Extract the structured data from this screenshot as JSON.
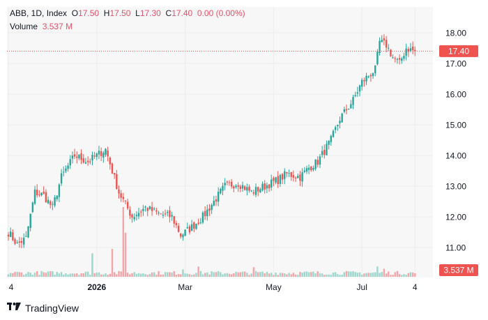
{
  "legend": {
    "symbol": "ABB, 1D, Index",
    "o_label": "O",
    "o_value": "17.50",
    "h_label": "H",
    "h_value": "17.50",
    "l_label": "L",
    "l_value": "17.30",
    "c_label": "C",
    "c_value": "17.40",
    "change": "0.00 (0.00%)",
    "volume_label": "Volume",
    "volume_value": "3.537 M"
  },
  "price_tag": "17.40",
  "volume_tag": "3.537 M",
  "footer": {
    "brand": "TradingView"
  },
  "colors": {
    "up": "#26a69a",
    "down": "#ef5350",
    "background": "#f7f7f7",
    "tag": "#ef5350"
  },
  "chart_data": {
    "type": "candlestick",
    "y_ticks": [
      11.0,
      12.0,
      13.0,
      14.0,
      15.0,
      16.0,
      17.0,
      18.0
    ],
    "y_tick_labels": [
      "11.00",
      "12.00",
      "13.00",
      "14.00",
      "15.00",
      "16.00",
      "17.00",
      "18.00"
    ],
    "ylim": [
      10.2,
      18.3
    ],
    "last_price": 17.4,
    "x_ticks": [
      {
        "label": "4",
        "index": 0
      },
      {
        "label": "2026",
        "index": 40
      },
      {
        "label": "Mar",
        "index": 80
      },
      {
        "label": "May",
        "index": 120
      },
      {
        "label": "Jul",
        "index": 160
      },
      {
        "label": "4",
        "index": 184
      }
    ],
    "x_tick_bold": [
      false,
      true,
      false,
      false,
      false,
      false
    ],
    "close_anchors": [
      [
        0,
        11.5
      ],
      [
        4,
        11.1
      ],
      [
        8,
        11.3
      ],
      [
        12,
        12.8
      ],
      [
        16,
        12.7
      ],
      [
        20,
        12.3
      ],
      [
        24,
        13.3
      ],
      [
        30,
        14.0
      ],
      [
        36,
        13.8
      ],
      [
        44,
        14.2
      ],
      [
        50,
        12.8
      ],
      [
        56,
        12.0
      ],
      [
        62,
        12.3
      ],
      [
        68,
        12.1
      ],
      [
        74,
        12.0
      ],
      [
        78,
        11.4
      ],
      [
        82,
        11.6
      ],
      [
        88,
        12.0
      ],
      [
        94,
        12.6
      ],
      [
        98,
        13.0
      ],
      [
        104,
        13.1
      ],
      [
        110,
        12.8
      ],
      [
        116,
        13.0
      ],
      [
        122,
        13.2
      ],
      [
        126,
        13.4
      ],
      [
        132,
        13.3
      ],
      [
        136,
        13.6
      ],
      [
        140,
        13.8
      ],
      [
        146,
        14.5
      ],
      [
        150,
        15.2
      ],
      [
        156,
        15.8
      ],
      [
        160,
        16.4
      ],
      [
        166,
        16.8
      ],
      [
        168,
        17.7
      ],
      [
        171,
        17.6
      ],
      [
        174,
        17.2
      ],
      [
        177,
        17.0
      ],
      [
        180,
        17.5
      ],
      [
        184,
        17.4
      ]
    ],
    "volume_note": "Volume histogram at bottom, scaled to max value in series",
    "volume_spikes": [
      {
        "index": 38,
        "value": 3.2
      },
      {
        "index": 47,
        "value": 3.8
      },
      {
        "index": 52,
        "value": 9.5
      },
      {
        "index": 53,
        "value": 6.0
      },
      {
        "index": 79,
        "value": 1.0
      },
      {
        "index": 86,
        "value": 1.4
      },
      {
        "index": 111,
        "value": 1.3
      },
      {
        "index": 167,
        "value": 1.4
      },
      {
        "index": 170,
        "value": 1.1
      }
    ]
  }
}
